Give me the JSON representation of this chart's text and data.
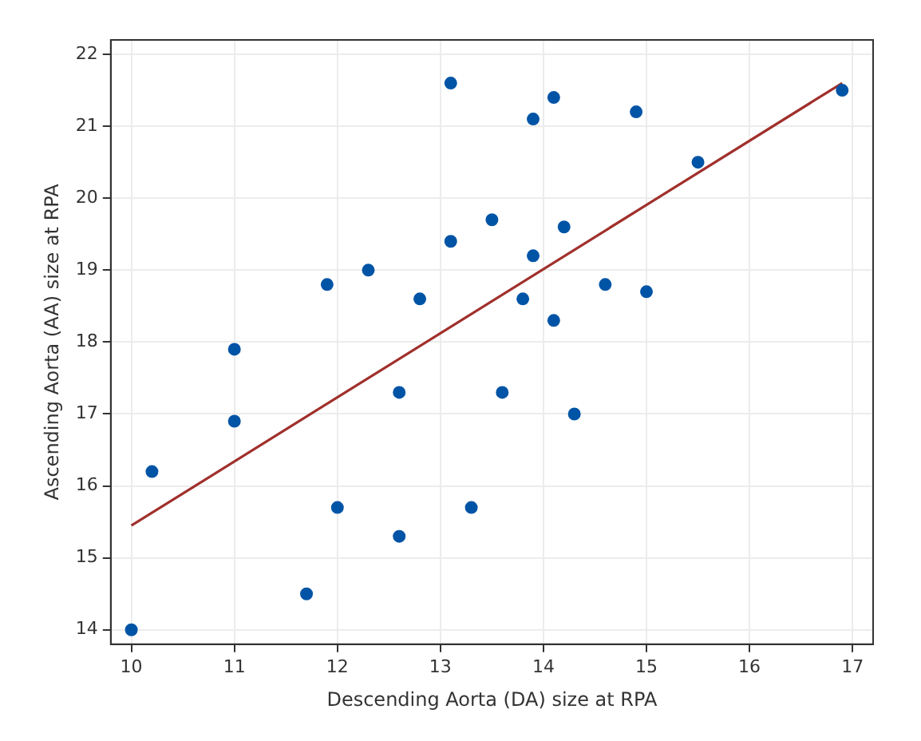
{
  "chart_data": {
    "type": "scatter",
    "xlabel": "Descending Aorta (DA) size at RPA",
    "ylabel": "Ascending Aorta (AA) size at RPA",
    "xlim": [
      9.8,
      17.2
    ],
    "xticks": [
      10,
      11,
      12,
      13,
      14,
      15,
      16,
      17
    ],
    "ylim": [
      13.8,
      22.2
    ],
    "yticks": [
      14,
      15,
      16,
      17,
      18,
      19,
      20,
      21,
      22
    ],
    "grid": true,
    "series": [
      {
        "marker": "circle",
        "color": "#0054a6",
        "x": [
          10,
          10.2,
          11,
          11,
          11.7,
          11.9,
          12,
          12.3,
          12.6,
          12.6,
          12.8,
          13.1,
          13.1,
          13.3,
          13.5,
          13.6,
          13.8,
          13.9,
          13.9,
          14.1,
          14.1,
          14.2,
          14.3,
          14.6,
          14.9,
          15,
          15.5,
          16.9
        ],
        "values": [
          14,
          16.2,
          17.9,
          16.9,
          14.5,
          18.8,
          15.7,
          19,
          17.3,
          15.3,
          18.6,
          21.6,
          19.4,
          15.7,
          19.7,
          17.3,
          18.6,
          21.1,
          19.2,
          21.4,
          18.3,
          19.6,
          17,
          18.8,
          21.2,
          18.7,
          20.5,
          21.5
        ]
      },
      {
        "type": "line",
        "marker": "none",
        "color": "#a0302c",
        "x": [
          10,
          16.9
        ],
        "values": [
          15.45,
          21.6
        ]
      }
    ]
  }
}
